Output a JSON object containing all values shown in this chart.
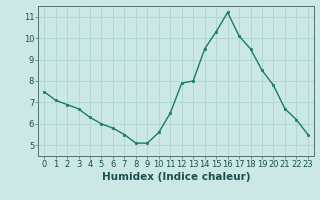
{
  "x": [
    0,
    1,
    2,
    3,
    4,
    5,
    6,
    7,
    8,
    9,
    10,
    11,
    12,
    13,
    14,
    15,
    16,
    17,
    18,
    19,
    20,
    21,
    22,
    23
  ],
  "y": [
    7.5,
    7.1,
    6.9,
    6.7,
    6.3,
    6.0,
    5.8,
    5.5,
    5.1,
    5.1,
    5.6,
    6.5,
    7.9,
    8.0,
    9.5,
    10.3,
    11.2,
    10.1,
    9.5,
    8.5,
    7.8,
    6.7,
    6.2,
    5.5
  ],
  "xlabel": "Humidex (Indice chaleur)",
  "ylim": [
    4.5,
    11.5
  ],
  "xlim": [
    -0.5,
    23.5
  ],
  "yticks": [
    5,
    6,
    7,
    8,
    9,
    10,
    11
  ],
  "xticks": [
    0,
    1,
    2,
    3,
    4,
    5,
    6,
    7,
    8,
    9,
    10,
    11,
    12,
    13,
    14,
    15,
    16,
    17,
    18,
    19,
    20,
    21,
    22,
    23
  ],
  "line_color": "#1a7a6e",
  "marker_color": "#1a7a6e",
  "bg_color": "#cce8e4",
  "grid_color": "#b0d8d4",
  "tick_fontsize": 6,
  "label_fontsize": 7.5
}
